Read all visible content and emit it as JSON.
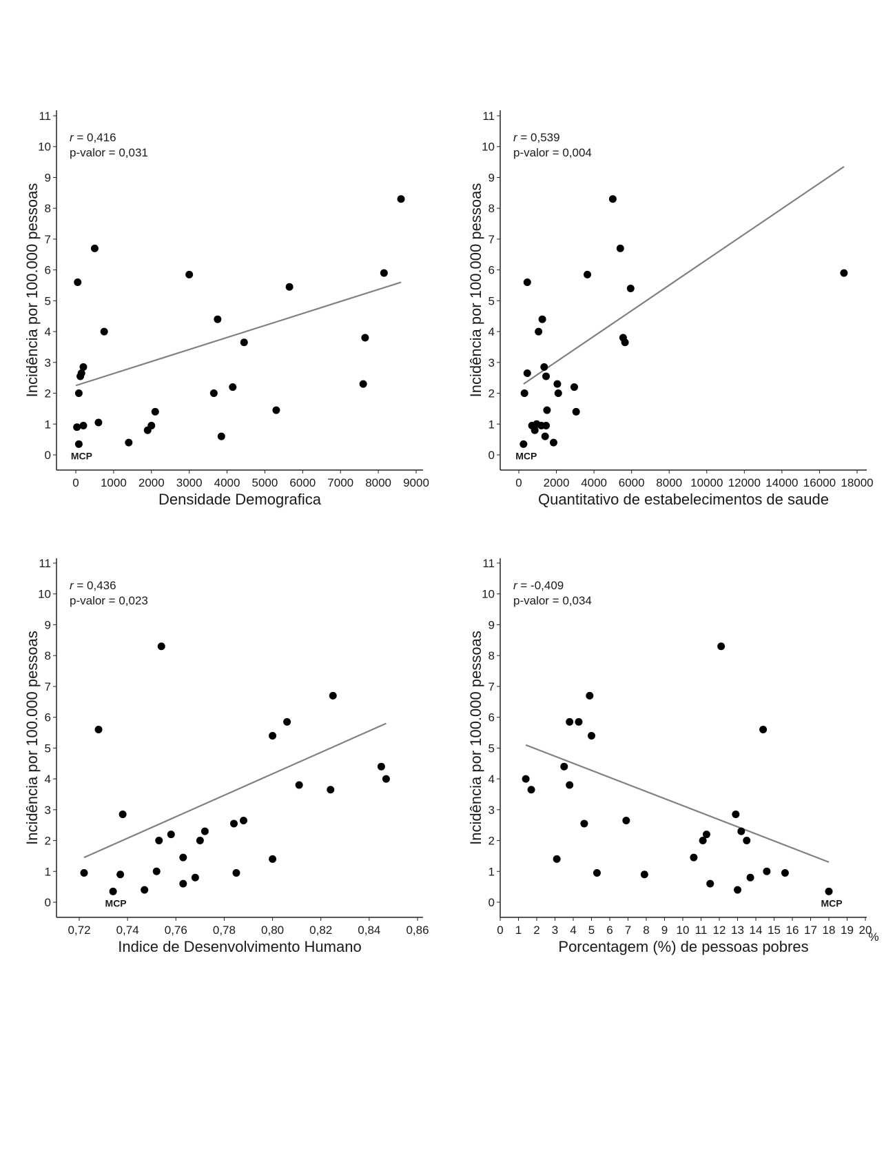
{
  "chart_data": [
    {
      "type": "scatter",
      "xlabel": "Densidade Demografica",
      "ylabel": "Incidência por 100.000 pessoas",
      "stats": {
        "r_symbol": "r",
        "r_value": " = 0,416",
        "p_text": "p-valor = 0,031"
      },
      "xlim": [
        -500,
        9000
      ],
      "ylim": [
        -0.5,
        11
      ],
      "x_ticks": [
        0,
        1000,
        2000,
        3000,
        4000,
        5000,
        6000,
        7000,
        8000,
        9000
      ],
      "x_tick_labels": [
        "0",
        "1000",
        "2000",
        "3000",
        "4000",
        "5000",
        "6000",
        "7000",
        "8000",
        "9000"
      ],
      "y_ticks": [
        0,
        1,
        2,
        3,
        4,
        5,
        6,
        7,
        8,
        9,
        10,
        11
      ],
      "y_tick_labels": [
        "0",
        "1",
        "2",
        "3",
        "4",
        "5",
        "6",
        "7",
        "8",
        "9",
        "10",
        "11"
      ],
      "points": [
        {
          "x": 8600,
          "y": 8.3
        },
        {
          "x": 500,
          "y": 6.7
        },
        {
          "x": 3000,
          "y": 5.85
        },
        {
          "x": 8150,
          "y": 5.9
        },
        {
          "x": 50,
          "y": 5.6
        },
        {
          "x": 5650,
          "y": 5.45
        },
        {
          "x": 3750,
          "y": 4.4
        },
        {
          "x": 750,
          "y": 4.0
        },
        {
          "x": 7650,
          "y": 3.8
        },
        {
          "x": 4450,
          "y": 3.65
        },
        {
          "x": 200,
          "y": 2.85
        },
        {
          "x": 150,
          "y": 2.65
        },
        {
          "x": 120,
          "y": 2.55
        },
        {
          "x": 7600,
          "y": 2.3
        },
        {
          "x": 4150,
          "y": 2.2
        },
        {
          "x": 3650,
          "y": 2.0
        },
        {
          "x": 80,
          "y": 2.0
        },
        {
          "x": 5300,
          "y": 1.45
        },
        {
          "x": 2100,
          "y": 1.4
        },
        {
          "x": 600,
          "y": 1.05
        },
        {
          "x": 200,
          "y": 0.95
        },
        {
          "x": 30,
          "y": 0.9
        },
        {
          "x": 2000,
          "y": 0.95
        },
        {
          "x": 1900,
          "y": 0.8
        },
        {
          "x": 3850,
          "y": 0.6
        },
        {
          "x": 1400,
          "y": 0.4
        },
        {
          "x": 80,
          "y": 0.35
        }
      ],
      "trendline": {
        "x": [
          0,
          8600
        ],
        "y": [
          2.25,
          5.6
        ]
      },
      "annotation": {
        "text": "MCP",
        "x": 80,
        "y": 0.35
      }
    },
    {
      "type": "scatter",
      "xlabel": "Quantitativo de estabelecimentos de saude",
      "ylabel": "Incidência por 100.000 pessoas",
      "stats": {
        "r_symbol": "r",
        "r_value": " = 0,539",
        "p_text": "p-valor = 0,004"
      },
      "xlim": [
        -1000,
        19000
      ],
      "ylim": [
        -0.5,
        11
      ],
      "x_ticks": [
        0,
        2000,
        4000,
        6000,
        8000,
        10000,
        12000,
        14000,
        16000,
        18000
      ],
      "x_tick_labels": [
        "0",
        "2000",
        "4000",
        "6000",
        "8000",
        "10000",
        "12000",
        "14000",
        "16000",
        "18000"
      ],
      "y_ticks": [
        0,
        1,
        2,
        3,
        4,
        5,
        6,
        7,
        8,
        9,
        10,
        11
      ],
      "y_tick_labels": [
        "0",
        "1",
        "2",
        "3",
        "4",
        "5",
        "6",
        "7",
        "8",
        "9",
        "10",
        "11"
      ],
      "points": [
        {
          "x": 5000,
          "y": 8.3
        },
        {
          "x": 5400,
          "y": 6.7
        },
        {
          "x": 3650,
          "y": 5.85
        },
        {
          "x": 17300,
          "y": 5.9
        },
        {
          "x": 450,
          "y": 5.6
        },
        {
          "x": 5950,
          "y": 5.4
        },
        {
          "x": 1250,
          "y": 4.4
        },
        {
          "x": 1050,
          "y": 4.0
        },
        {
          "x": 5550,
          "y": 3.8
        },
        {
          "x": 5650,
          "y": 3.65
        },
        {
          "x": 1350,
          "y": 2.85
        },
        {
          "x": 450,
          "y": 2.65
        },
        {
          "x": 1450,
          "y": 2.55
        },
        {
          "x": 2050,
          "y": 2.3
        },
        {
          "x": 2950,
          "y": 2.2
        },
        {
          "x": 2100,
          "y": 2.0
        },
        {
          "x": 300,
          "y": 2.0
        },
        {
          "x": 1500,
          "y": 1.45
        },
        {
          "x": 3050,
          "y": 1.4
        },
        {
          "x": 950,
          "y": 1.0
        },
        {
          "x": 700,
          "y": 0.95
        },
        {
          "x": 1450,
          "y": 0.95
        },
        {
          "x": 1200,
          "y": 0.95
        },
        {
          "x": 850,
          "y": 0.8
        },
        {
          "x": 1400,
          "y": 0.6
        },
        {
          "x": 1850,
          "y": 0.4
        },
        {
          "x": 250,
          "y": 0.35
        }
      ],
      "trendline": {
        "x": [
          250,
          17300
        ],
        "y": [
          2.3,
          9.35
        ]
      },
      "annotation": {
        "text": "MCP",
        "x": 250,
        "y": 0.35
      }
    },
    {
      "type": "scatter",
      "xlabel": "Indice de Desenvolvimento Humano",
      "ylabel": "Incidência por 100.000 pessoas",
      "stats": {
        "r_symbol": "r",
        "r_value": " = 0,436",
        "p_text": "p-valor = 0,023"
      },
      "xlim": [
        0.71,
        0.86
      ],
      "ylim": [
        -0.5,
        11
      ],
      "x_ticks": [
        0.72,
        0.74,
        0.76,
        0.78,
        0.8,
        0.82,
        0.84,
        0.86
      ],
      "x_tick_labels": [
        "0,72",
        "0,74",
        "0,76",
        "0,78",
        "0,80",
        "0,82",
        "0,84",
        "0,86"
      ],
      "y_ticks": [
        0,
        1,
        2,
        3,
        4,
        5,
        6,
        7,
        8,
        9,
        10,
        11
      ],
      "y_tick_labels": [
        "0",
        "1",
        "2",
        "3",
        "4",
        "5",
        "6",
        "7",
        "8",
        "9",
        "10",
        "11"
      ],
      "points": [
        {
          "x": 0.754,
          "y": 8.3
        },
        {
          "x": 0.825,
          "y": 6.7
        },
        {
          "x": 0.806,
          "y": 5.85
        },
        {
          "x": 0.728,
          "y": 5.6
        },
        {
          "x": 0.8,
          "y": 5.4
        },
        {
          "x": 0.845,
          "y": 4.4
        },
        {
          "x": 0.847,
          "y": 4.0
        },
        {
          "x": 0.811,
          "y": 3.8
        },
        {
          "x": 0.824,
          "y": 3.65
        },
        {
          "x": 0.738,
          "y": 2.85
        },
        {
          "x": 0.788,
          "y": 2.65
        },
        {
          "x": 0.784,
          "y": 2.55
        },
        {
          "x": 0.772,
          "y": 2.3
        },
        {
          "x": 0.758,
          "y": 2.2
        },
        {
          "x": 0.753,
          "y": 2.0
        },
        {
          "x": 0.77,
          "y": 2.0
        },
        {
          "x": 0.763,
          "y": 1.45
        },
        {
          "x": 0.8,
          "y": 1.4
        },
        {
          "x": 0.752,
          "y": 1.0
        },
        {
          "x": 0.722,
          "y": 0.95
        },
        {
          "x": 0.737,
          "y": 0.9
        },
        {
          "x": 0.785,
          "y": 0.95
        },
        {
          "x": 0.768,
          "y": 0.8
        },
        {
          "x": 0.763,
          "y": 0.6
        },
        {
          "x": 0.747,
          "y": 0.4
        },
        {
          "x": 0.734,
          "y": 0.35
        }
      ],
      "trendline": {
        "x": [
          0.722,
          0.847
        ],
        "y": [
          1.45,
          5.8
        ]
      },
      "annotation": {
        "text": "MCP",
        "x": 0.734,
        "y": 0.35
      }
    },
    {
      "type": "scatter",
      "xlabel": "Porcentagem (%) de pessoas pobres",
      "ylabel": "Incidência por 100.000 pessoas",
      "stats": {
        "r_symbol": "r",
        "r_value": " = -0,409",
        "p_text": "p-valor = 0,034"
      },
      "xlim": [
        0,
        20
      ],
      "ylim": [
        -0.5,
        11
      ],
      "x_ticks": [
        0,
        1,
        2,
        3,
        4,
        5,
        6,
        7,
        8,
        9,
        10,
        11,
        12,
        13,
        14,
        15,
        16,
        17,
        18,
        19,
        20
      ],
      "x_tick_labels": [
        "0",
        "1",
        "2",
        "3",
        "4",
        "5",
        "6",
        "7",
        "8",
        "9",
        "10",
        "11",
        "12",
        "13",
        "14",
        "15",
        "16",
        "17",
        "18",
        "19",
        "20"
      ],
      "x_unit": "%",
      "y_ticks": [
        0,
        1,
        2,
        3,
        4,
        5,
        6,
        7,
        8,
        9,
        10,
        11
      ],
      "y_tick_labels": [
        "0",
        "1",
        "2",
        "3",
        "4",
        "5",
        "6",
        "7",
        "8",
        "9",
        "10",
        "11"
      ],
      "points": [
        {
          "x": 12.1,
          "y": 8.3
        },
        {
          "x": 4.9,
          "y": 6.7
        },
        {
          "x": 3.8,
          "y": 5.85
        },
        {
          "x": 4.3,
          "y": 5.85
        },
        {
          "x": 14.4,
          "y": 5.6
        },
        {
          "x": 5.0,
          "y": 5.4
        },
        {
          "x": 3.5,
          "y": 4.4
        },
        {
          "x": 1.4,
          "y": 4.0
        },
        {
          "x": 3.8,
          "y": 3.8
        },
        {
          "x": 1.7,
          "y": 3.65
        },
        {
          "x": 12.9,
          "y": 2.85
        },
        {
          "x": 6.9,
          "y": 2.65
        },
        {
          "x": 4.6,
          "y": 2.55
        },
        {
          "x": 13.2,
          "y": 2.3
        },
        {
          "x": 11.3,
          "y": 2.2
        },
        {
          "x": 11.1,
          "y": 2.0
        },
        {
          "x": 13.5,
          "y": 2.0
        },
        {
          "x": 10.6,
          "y": 1.45
        },
        {
          "x": 3.1,
          "y": 1.4
        },
        {
          "x": 14.6,
          "y": 1.0
        },
        {
          "x": 5.3,
          "y": 0.95
        },
        {
          "x": 15.6,
          "y": 0.95
        },
        {
          "x": 7.9,
          "y": 0.9
        },
        {
          "x": 13.7,
          "y": 0.8
        },
        {
          "x": 11.5,
          "y": 0.6
        },
        {
          "x": 13.0,
          "y": 0.4
        },
        {
          "x": 18.0,
          "y": 0.35
        }
      ],
      "trendline": {
        "x": [
          1.4,
          18.0
        ],
        "y": [
          5.1,
          1.3
        ]
      },
      "annotation": {
        "text": "MCP",
        "x": 18.0,
        "y": 0.35
      }
    }
  ]
}
